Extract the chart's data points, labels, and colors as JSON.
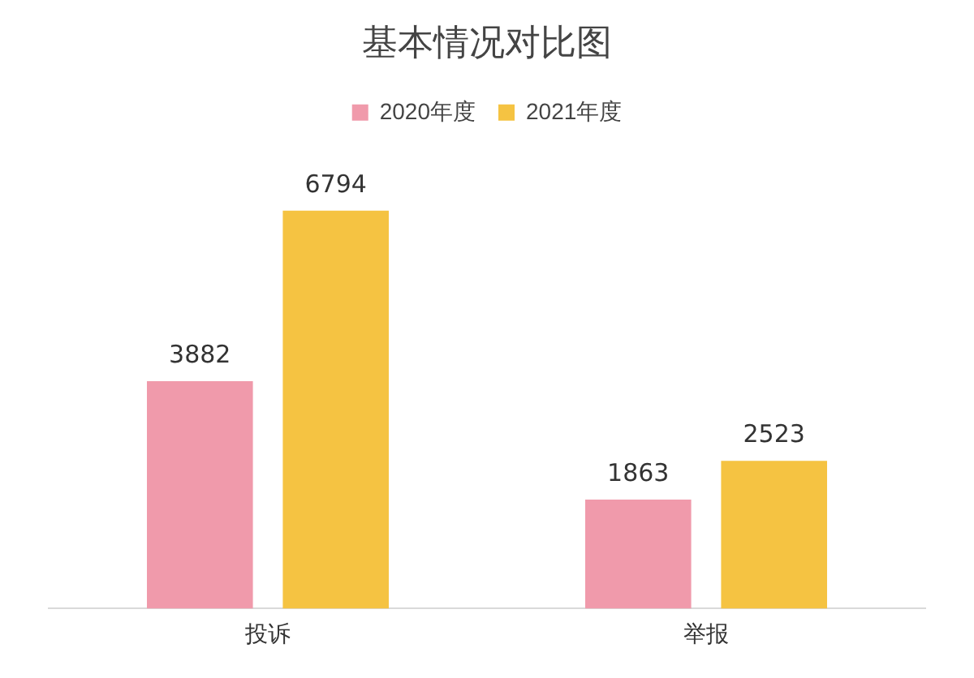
{
  "chart_data": {
    "type": "bar",
    "title": "基本情况对比图",
    "categories": [
      "投诉",
      "举报"
    ],
    "series": [
      {
        "name": "2020年度",
        "color": "#f09aab",
        "values": [
          3882,
          1863
        ]
      },
      {
        "name": "2021年度",
        "color": "#f5c342",
        "values": [
          6794,
          2523
        ]
      }
    ],
    "data_labels": true,
    "legend": "top",
    "grid": false,
    "tick_labels": "x"
  }
}
